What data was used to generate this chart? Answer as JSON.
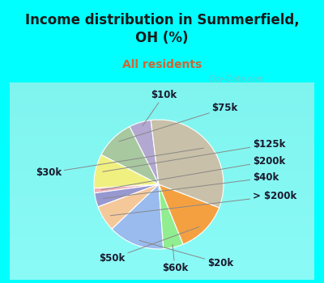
{
  "title": "Income distribution in Summerfield,\nOH (%)",
  "subtitle": "All residents",
  "labels": [
    "$10k",
    "$75k",
    "$125k",
    "$200k",
    "$40k",
    "> $200k",
    "$20k",
    "$60k",
    "$50k",
    "$30k"
  ],
  "values": [
    5.5,
    10.0,
    8.5,
    1.2,
    3.5,
    6.5,
    14.0,
    5.0,
    13.0,
    32.8
  ],
  "colors": [
    "#b3a8d1",
    "#a8c8a0",
    "#f0f080",
    "#f0b0b8",
    "#9898d0",
    "#f5c89a",
    "#99bbee",
    "#90ee90",
    "#f5a040",
    "#c8c0a8"
  ],
  "bg_cyan": "#00ffff",
  "bg_chart": "#d5ede4",
  "title_color": "#1a1a1a",
  "subtitle_color": "#cc6633",
  "watermark": "City-Data.com",
  "label_fontsize": 8.5,
  "title_fontsize": 12,
  "subtitle_fontsize": 10,
  "startangle": 97
}
